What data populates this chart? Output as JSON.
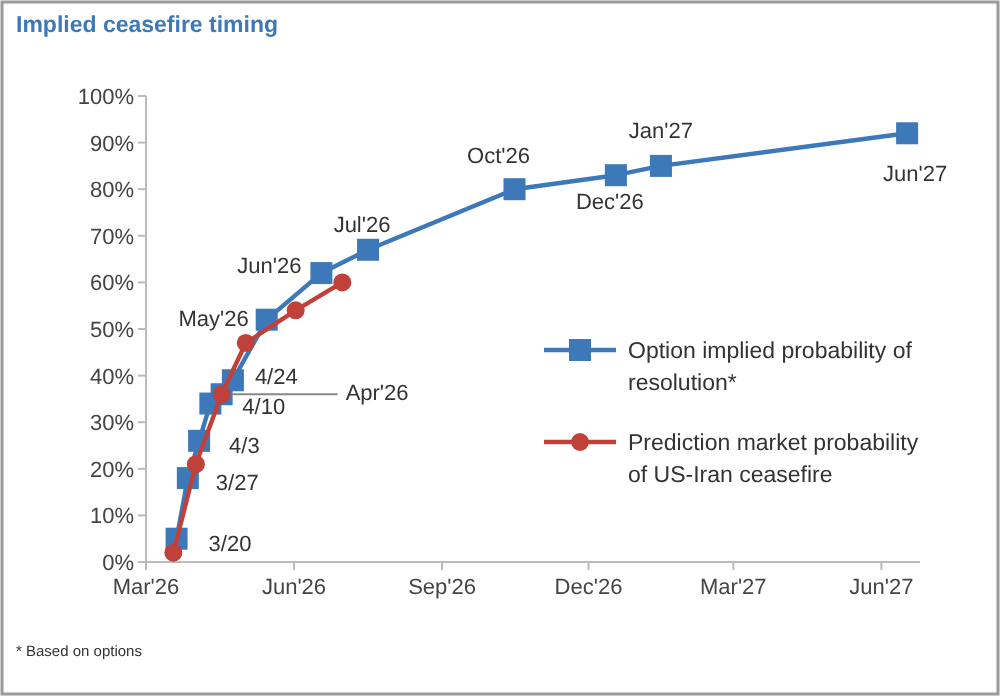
{
  "chart_data": {
    "type": "line",
    "title": "Implied ceasefire timing",
    "xlim": [
      "2026-03-01",
      "2027-06-25"
    ],
    "xticks": [
      {
        "value": "2026-03-01",
        "label": "Mar'26"
      },
      {
        "value": "2026-06-01",
        "label": "Jun'26"
      },
      {
        "value": "2026-09-01",
        "label": "Sep'26"
      },
      {
        "value": "2026-12-01",
        "label": "Dec'26"
      },
      {
        "value": "2027-03-01",
        "label": "Mar'27"
      },
      {
        "value": "2027-06-01",
        "label": "Jun'27"
      }
    ],
    "ylim": [
      0,
      100
    ],
    "yticks": [
      {
        "value": 0,
        "label": "0%"
      },
      {
        "value": 10,
        "label": "10%"
      },
      {
        "value": 20,
        "label": "20%"
      },
      {
        "value": 30,
        "label": "30%"
      },
      {
        "value": 40,
        "label": "40%"
      },
      {
        "value": 50,
        "label": "50%"
      },
      {
        "value": 60,
        "label": "60%"
      },
      {
        "value": 70,
        "label": "70%"
      },
      {
        "value": 80,
        "label": "80%"
      },
      {
        "value": 90,
        "label": "90%"
      },
      {
        "value": 100,
        "label": "100%"
      }
    ],
    "legend": "right",
    "line_style": "solid",
    "series": [
      {
        "name": "Option implied probability of resolution*",
        "color": "#3d78b8",
        "marker": "square",
        "x": [
          "2026-03-20",
          "2026-03-27",
          "2026-04-03",
          "2026-04-10",
          "2026-04-17",
          "2026-04-24",
          "2026-05-15",
          "2026-06-18",
          "2026-07-17",
          "2026-10-16",
          "2026-12-18",
          "2027-01-15",
          "2027-06-17"
        ],
        "values": [
          5,
          18,
          26,
          34,
          36,
          39,
          52,
          62,
          67,
          80,
          83,
          85,
          92
        ]
      },
      {
        "name": "Prediction market probability of US-Iran ceasefire",
        "color": "#c0413a",
        "marker": "circle",
        "x": [
          "2026-03-18",
          "2026-04-01",
          "2026-04-17",
          "2026-05-02",
          "2026-06-02",
          "2026-07-01"
        ],
        "values": [
          2,
          21,
          36,
          47,
          54,
          60
        ]
      }
    ],
    "annotations": [
      {
        "text": "3/20",
        "x": "2026-03-20",
        "y": 5
      },
      {
        "text": "3/27",
        "x": "2026-03-27",
        "y": 18
      },
      {
        "text": "4/3",
        "x": "2026-04-03",
        "y": 26
      },
      {
        "text": "4/10",
        "x": "2026-04-10",
        "y": 34
      },
      {
        "text": "4/24",
        "x": "2026-04-24",
        "y": 39
      },
      {
        "text": "Apr'26",
        "x": "2026-04-17",
        "y": 36
      },
      {
        "text": "May'26",
        "x": "2026-05-15",
        "y": 52
      },
      {
        "text": "Jun'26",
        "x": "2026-06-18",
        "y": 62
      },
      {
        "text": "Jul'26",
        "x": "2026-07-17",
        "y": 67
      },
      {
        "text": "Oct'26",
        "x": "2026-10-16",
        "y": 80
      },
      {
        "text": "Dec'26",
        "x": "2026-12-18",
        "y": 83
      },
      {
        "text": "Jan'27",
        "x": "2027-01-15",
        "y": 85
      },
      {
        "text": "Jun'27",
        "x": "2027-06-17",
        "y": 92
      },
      "* Based on options"
    ]
  }
}
